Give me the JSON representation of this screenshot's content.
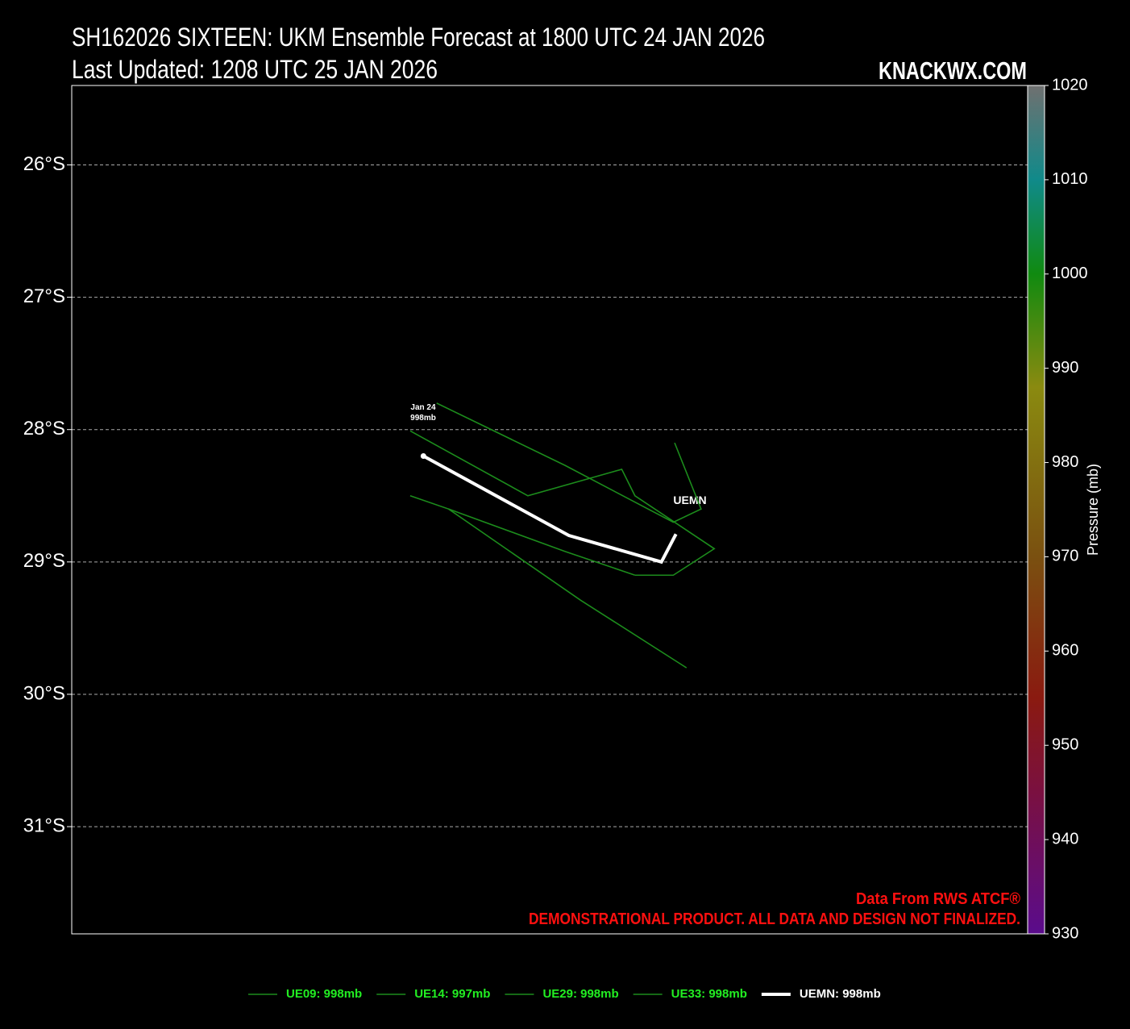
{
  "chart_data": {
    "type": "track",
    "title": "SH162026 SIXTEEN: UKM Ensemble Forecast at 1800 UTC 24 JAN 2026",
    "subtitle": "Last Updated: 1208 UTC 25 JAN 2026",
    "brand": "KNACKWX.COM",
    "credit": "Data From RWS ATCF®",
    "disclaimer": "DEMONSTRATIONAL PRODUCT. ALL DATA AND DESIGN NOT FINALIZED.",
    "annotations": [
      "Jan 24",
      "998mb",
      "UEMN"
    ],
    "xlim": [
      0,
      7.23
    ],
    "ylim": [
      -31.81,
      -25.4
    ],
    "yticks": [
      {
        "value": -26,
        "label": "26°S"
      },
      {
        "value": -27,
        "label": "27°S"
      },
      {
        "value": -28,
        "label": "28°S"
      },
      {
        "value": -29,
        "label": "29°S"
      },
      {
        "value": -30,
        "label": "30°S"
      },
      {
        "value": -31,
        "label": "31°S"
      }
    ],
    "grid": true,
    "series": [
      {
        "name": "UE09: 998mb",
        "color": "#1c8c1c",
        "x": [
          2.76,
          3.73,
          4.55,
          4.76,
          4.56
        ],
        "y": [
          -27.8,
          -28.27,
          -28.7,
          -28.6,
          -28.1
        ]
      },
      {
        "name": "UE14: 997mb",
        "color": "#1c8c1c",
        "x": [
          2.56,
          3.45,
          4.16,
          4.26,
          4.86,
          4.55,
          4.26
        ],
        "y": [
          -28.01,
          -28.5,
          -28.3,
          -28.5,
          -28.9,
          -29.1,
          -29.1
        ]
      },
      {
        "name": "UE29: 998mb",
        "color": "#1c8c1c",
        "x": [
          2.56,
          2.85,
          3.85,
          4.65
        ],
        "y": [
          -28.5,
          -28.6,
          -29.29,
          -29.8
        ]
      },
      {
        "name": "UE33: 998mb",
        "color": "#1c8c1c",
        "x": [
          2.85,
          3.73,
          4.26
        ],
        "y": [
          -28.6,
          -28.92,
          -29.1
        ]
      },
      {
        "name": "UEMN: 998mb",
        "color": "#ffffff",
        "x": [
          2.66,
          3.76,
          4.46,
          4.57
        ],
        "y": [
          -28.2,
          -28.8,
          -29.0,
          -28.79
        ]
      }
    ],
    "colorbar": {
      "label": "Pressure (mb)",
      "clim": [
        930,
        1020
      ],
      "ticks": [
        930,
        940,
        950,
        960,
        970,
        980,
        990,
        1000,
        1010,
        1020
      ],
      "colormap": [
        {
          "value": 930,
          "color": "#5a0c8c"
        },
        {
          "value": 945,
          "color": "#7a1040"
        },
        {
          "value": 955,
          "color": "#8a1a10"
        },
        {
          "value": 970,
          "color": "#7a5010"
        },
        {
          "value": 988,
          "color": "#8a8a10"
        },
        {
          "value": 1000,
          "color": "#108a10"
        },
        {
          "value": 1010,
          "color": "#108a8a"
        },
        {
          "value": 1020,
          "color": "#707070"
        }
      ]
    }
  }
}
